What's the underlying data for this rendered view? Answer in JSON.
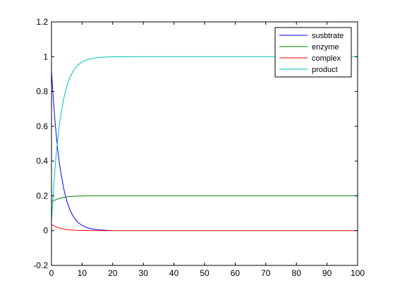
{
  "chart_data": {
    "type": "line",
    "title": "",
    "xlabel": "",
    "ylabel": "",
    "xlim": [
      0,
      100
    ],
    "ylim": [
      -0.2,
      1.2
    ],
    "xticks": [
      0,
      10,
      20,
      30,
      40,
      50,
      60,
      70,
      80,
      90,
      100
    ],
    "yticks": [
      -0.2,
      0,
      0.2,
      0.4,
      0.6,
      0.8,
      1,
      1.2
    ],
    "xtick_labels": [
      "0",
      "10",
      "20",
      "30",
      "40",
      "50",
      "60",
      "70",
      "80",
      "90",
      "100"
    ],
    "ytick_labels": [
      "-0.2",
      "0",
      "0.2",
      "0.4",
      "0.6",
      "0.8",
      "1",
      "1.2"
    ],
    "grid": false,
    "legend_position": "top-right",
    "series": [
      {
        "name": "susbtrate",
        "color": "#0000ff",
        "x": [
          0,
          0.5,
          1,
          1.5,
          2,
          2.5,
          3,
          3.5,
          4,
          5,
          6,
          7,
          8,
          9,
          10,
          11,
          12,
          13,
          14,
          15,
          16,
          17,
          18,
          19,
          20
        ],
        "y": [
          0.92,
          0.78,
          0.66,
          0.56,
          0.47,
          0.4,
          0.34,
          0.29,
          0.24,
          0.17,
          0.12,
          0.085,
          0.06,
          0.042,
          0.03,
          0.021,
          0.015,
          0.011,
          0.008,
          0.005,
          0.004,
          0.003,
          0.002,
          0.001,
          0.001
        ]
      },
      {
        "name": "enzyme",
        "color": "#008000",
        "x": [
          0,
          1,
          2,
          3,
          4,
          5,
          6,
          7,
          8,
          10,
          12,
          15,
          20,
          30,
          50,
          100
        ],
        "y": [
          0.165,
          0.175,
          0.182,
          0.187,
          0.191,
          0.194,
          0.196,
          0.197,
          0.198,
          0.199,
          0.2,
          0.2,
          0.2,
          0.2,
          0.2,
          0.2
        ]
      },
      {
        "name": "complex",
        "color": "#ff0000",
        "x": [
          0,
          1,
          2,
          3,
          4,
          5,
          6,
          7,
          8,
          10,
          12,
          15,
          20,
          30,
          50,
          100
        ],
        "y": [
          0.035,
          0.025,
          0.018,
          0.013,
          0.009,
          0.006,
          0.004,
          0.003,
          0.002,
          0.001,
          0.0005,
          0,
          0,
          0,
          0,
          0
        ]
      },
      {
        "name": "product",
        "color": "#00bfbf",
        "x": [
          0,
          0.5,
          1,
          1.5,
          2,
          2.5,
          3,
          3.5,
          4,
          5,
          6,
          7,
          8,
          9,
          10,
          12,
          14,
          16,
          18,
          20,
          30,
          50,
          100
        ],
        "y": [
          0.05,
          0.2,
          0.32,
          0.43,
          0.52,
          0.6,
          0.66,
          0.71,
          0.76,
          0.83,
          0.88,
          0.915,
          0.94,
          0.957,
          0.97,
          0.985,
          0.992,
          0.996,
          0.998,
          0.999,
          1.0,
          1.0,
          1.0
        ]
      }
    ]
  }
}
